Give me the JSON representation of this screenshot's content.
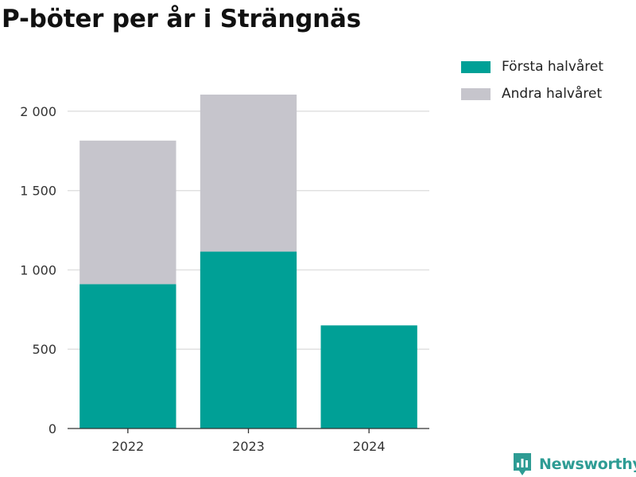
{
  "chart_data": {
    "type": "bar",
    "stacked": true,
    "title": "P-böter per år i Strängnäs",
    "xlabel": "",
    "ylabel": "",
    "categories": [
      "2022",
      "2023",
      "2024"
    ],
    "series": [
      {
        "name": "Första halvåret",
        "values": [
          910,
          1115,
          650
        ],
        "color": "#00a096"
      },
      {
        "name": "Andra halvåret",
        "values": [
          905,
          990,
          0
        ],
        "color": "#c6c5cc"
      }
    ],
    "ylim": [
      0,
      2150
    ],
    "yticks": [
      0,
      500,
      1000,
      1500,
      2000
    ],
    "ytick_labels": [
      "0",
      "500",
      "1 000",
      "1 500",
      "2 000"
    ],
    "grid": true,
    "legend_position": "top-right"
  },
  "brand": {
    "name": "Newsworthy",
    "icon": "newsworthy-logo-icon",
    "color": "#2e9c94"
  }
}
